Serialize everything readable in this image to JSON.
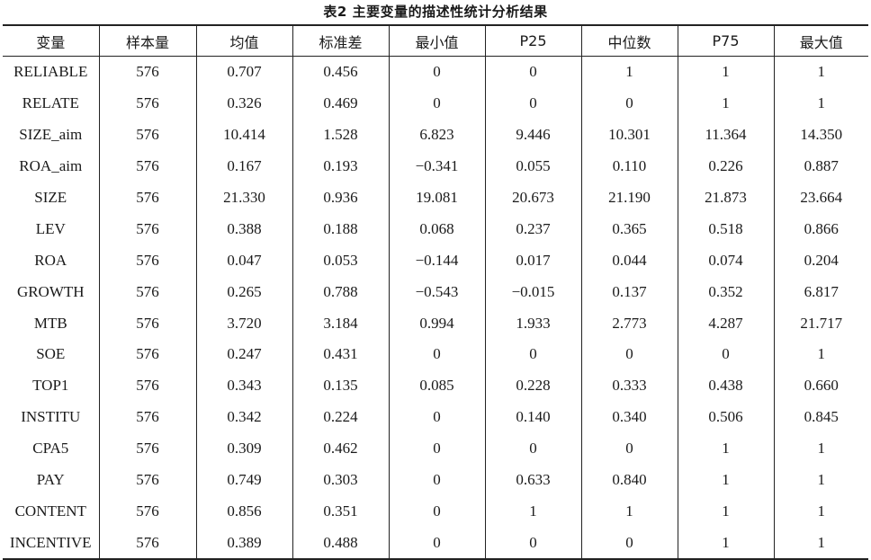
{
  "caption": "表2  主要变量的描述性统计分析结果",
  "columns": [
    "变量",
    "样本量",
    "均值",
    "标准差",
    "最小值",
    "P25",
    "中位数",
    "P75",
    "最大值"
  ],
  "rows": [
    [
      "RELIABLE",
      "576",
      "0.707",
      "0.456",
      "0",
      "0",
      "1",
      "1",
      "1"
    ],
    [
      "RELATE",
      "576",
      "0.326",
      "0.469",
      "0",
      "0",
      "0",
      "1",
      "1"
    ],
    [
      "SIZE_aim",
      "576",
      "10.414",
      "1.528",
      "6.823",
      "9.446",
      "10.301",
      "11.364",
      "14.350"
    ],
    [
      "ROA_aim",
      "576",
      "0.167",
      "0.193",
      "−0.341",
      "0.055",
      "0.110",
      "0.226",
      "0.887"
    ],
    [
      "SIZE",
      "576",
      "21.330",
      "0.936",
      "19.081",
      "20.673",
      "21.190",
      "21.873",
      "23.664"
    ],
    [
      "LEV",
      "576",
      "0.388",
      "0.188",
      "0.068",
      "0.237",
      "0.365",
      "0.518",
      "0.866"
    ],
    [
      "ROA",
      "576",
      "0.047",
      "0.053",
      "−0.144",
      "0.017",
      "0.044",
      "0.074",
      "0.204"
    ],
    [
      "GROWTH",
      "576",
      "0.265",
      "0.788",
      "−0.543",
      "−0.015",
      "0.137",
      "0.352",
      "6.817"
    ],
    [
      "MTB",
      "576",
      "3.720",
      "3.184",
      "0.994",
      "1.933",
      "2.773",
      "4.287",
      "21.717"
    ],
    [
      "SOE",
      "576",
      "0.247",
      "0.431",
      "0",
      "0",
      "0",
      "0",
      "1"
    ],
    [
      "TOP1",
      "576",
      "0.343",
      "0.135",
      "0.085",
      "0.228",
      "0.333",
      "0.438",
      "0.660"
    ],
    [
      "INSTITU",
      "576",
      "0.342",
      "0.224",
      "0",
      "0.140",
      "0.340",
      "0.506",
      "0.845"
    ],
    [
      "CPA5",
      "576",
      "0.309",
      "0.462",
      "0",
      "0",
      "0",
      "1",
      "1"
    ],
    [
      "PAY",
      "576",
      "0.749",
      "0.303",
      "0",
      "0.633",
      "0.840",
      "1",
      "1"
    ],
    [
      "CONTENT",
      "576",
      "0.856",
      "0.351",
      "0",
      "1",
      "1",
      "1",
      "1"
    ],
    [
      "INCENTIVE",
      "576",
      "0.389",
      "0.488",
      "0",
      "0",
      "0",
      "1",
      "1"
    ]
  ]
}
